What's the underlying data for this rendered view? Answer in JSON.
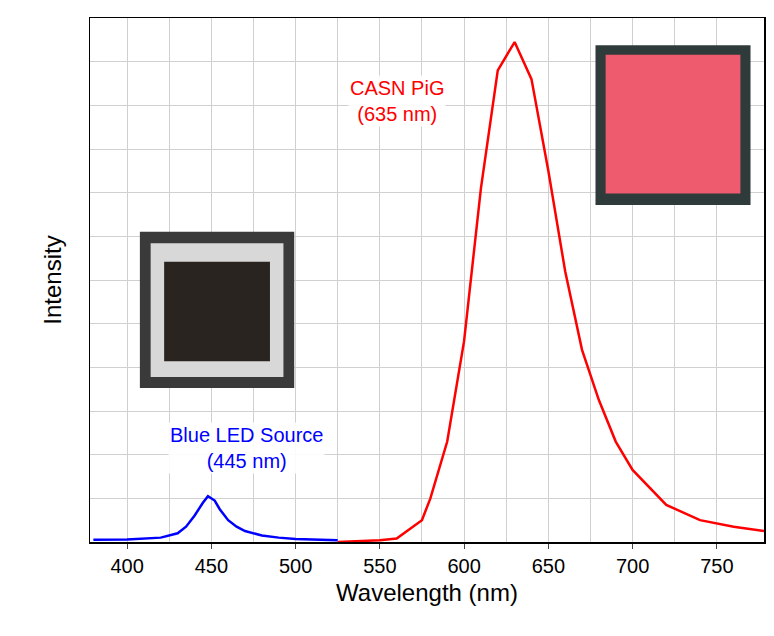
{
  "chart_data": {
    "type": "line",
    "x_label": "Wavelength (nm)",
    "y_label": "Intensity",
    "xlim": [
      378,
      778
    ],
    "xticks": [
      400,
      450,
      500,
      550,
      600,
      650,
      700,
      750
    ],
    "ylim": [
      0,
      12
    ],
    "yticks": [
      0,
      1,
      2,
      3,
      4,
      5,
      6,
      7,
      8,
      9,
      10,
      11,
      12
    ],
    "tick_labels": "x",
    "grid": true,
    "series": [
      {
        "name": "Blue LED Source (445 nm)",
        "color": "#0000ff",
        "x": [
          380,
          400,
          420,
          430,
          435,
          440,
          445,
          448,
          452,
          455,
          460,
          465,
          470,
          480,
          490,
          500,
          525
        ],
        "values": [
          0.05,
          0.06,
          0.1,
          0.2,
          0.35,
          0.6,
          0.9,
          1.05,
          0.95,
          0.75,
          0.5,
          0.35,
          0.25,
          0.15,
          0.1,
          0.07,
          0.04
        ]
      },
      {
        "name": "CASN PiG (635 nm)",
        "color": "#ff0000",
        "x": [
          525,
          540,
          550,
          560,
          575,
          580,
          590,
          600,
          610,
          620,
          630,
          640,
          650,
          660,
          670,
          680,
          690,
          700,
          720,
          740,
          760,
          778
        ],
        "values": [
          0.0,
          0.02,
          0.04,
          0.08,
          0.5,
          1.0,
          2.3,
          4.6,
          8.1,
          10.8,
          11.45,
          10.6,
          8.5,
          6.2,
          4.4,
          3.25,
          2.3,
          1.65,
          0.85,
          0.5,
          0.35,
          0.25
        ]
      }
    ]
  }
}
